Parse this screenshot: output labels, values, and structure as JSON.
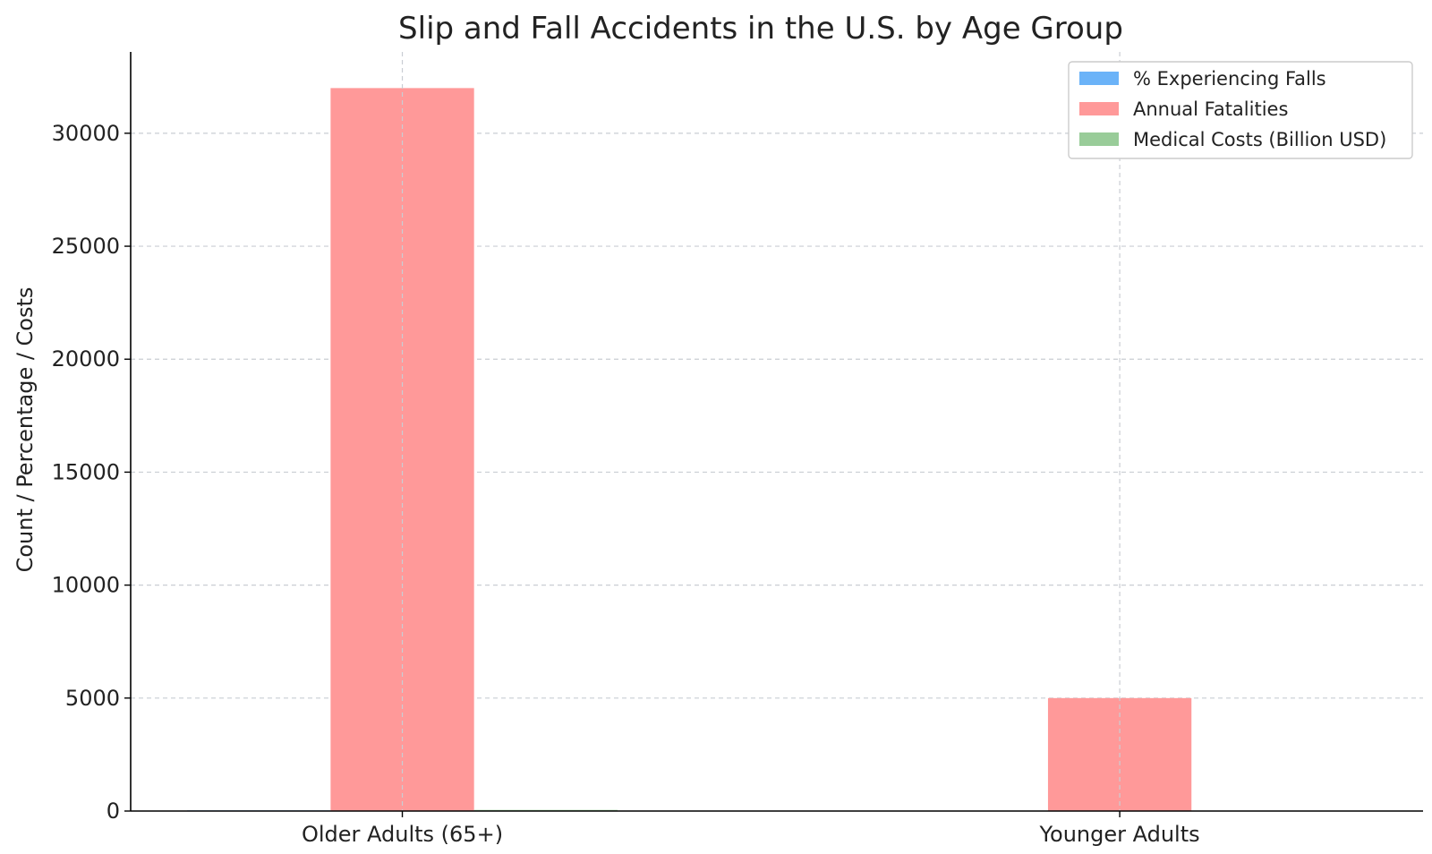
{
  "chart_data": {
    "type": "bar",
    "title": "Slip and Fall Accidents in the U.S. by Age Group",
    "xlabel": "",
    "ylabel": "Count / Percentage / Costs",
    "categories": [
      "Older Adults (65+)",
      "Younger Adults"
    ],
    "series": [
      {
        "name": "% Experiencing Falls",
        "color": "#6bb3f8",
        "values": [
          28,
          10
        ]
      },
      {
        "name": "Annual Fatalities",
        "color": "#ff9999",
        "values": [
          32000,
          5000
        ]
      },
      {
        "name": "Medical Costs (Billion USD)",
        "color": "#99cc99",
        "values": [
          50,
          5
        ]
      }
    ],
    "ylim": [
      0,
      33600
    ],
    "yticks": [
      0,
      5000,
      10000,
      15000,
      20000,
      25000,
      30000
    ],
    "grid": true,
    "legend": "top-right"
  }
}
